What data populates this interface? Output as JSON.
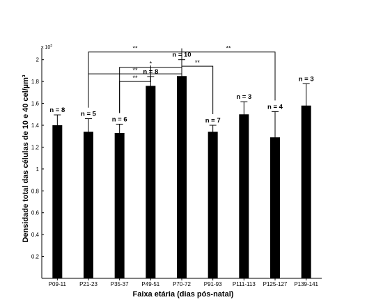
{
  "chart_data": {
    "type": "bar",
    "xlabel": "Faixa etária (dias pós-natal)",
    "ylabel": "Densidade total das células de 10 e 40 cel/µm³",
    "y_multiplier": "x 10",
    "y_multiplier_exp": "3",
    "ylim": [
      0,
      2.1
    ],
    "yticks": [
      "0.2",
      "0.4",
      "0.6",
      "0.8",
      "1",
      "1.2",
      "1.4",
      "1.6",
      "1.8",
      "2"
    ],
    "categories": [
      "P09-11",
      "P21-23",
      "P35-37",
      "P49-51",
      "P70-72",
      "P91-93",
      "P111-113",
      "P125-127",
      "P139-141"
    ],
    "values": [
      1.4,
      1.34,
      1.33,
      1.76,
      1.85,
      1.34,
      1.5,
      1.29,
      1.58
    ],
    "errors": [
      0.095,
      0.12,
      0.08,
      0.085,
      0.15,
      0.06,
      0.115,
      0.235,
      0.2
    ],
    "n_labels": [
      "n = 8",
      "n = 5",
      "n = 6",
      "n = 8",
      "n = 10",
      "n = 7",
      "n = 3",
      "n = 4",
      "n = 3"
    ],
    "significance": [
      {
        "from": 1,
        "to": 4,
        "level": 2.07,
        "label": "**"
      },
      {
        "from": 2,
        "to": 4,
        "level": 1.93,
        "label": "*"
      },
      {
        "from": 1,
        "to": 4,
        "level": 1.87,
        "label": "**"
      },
      {
        "from": 2,
        "to": 3,
        "level": 1.8,
        "label": "**"
      },
      {
        "from": 4,
        "to": 7,
        "level": 2.07,
        "label": "**"
      },
      {
        "from": 4,
        "to": 5,
        "level": 1.94,
        "label": "**"
      }
    ]
  }
}
